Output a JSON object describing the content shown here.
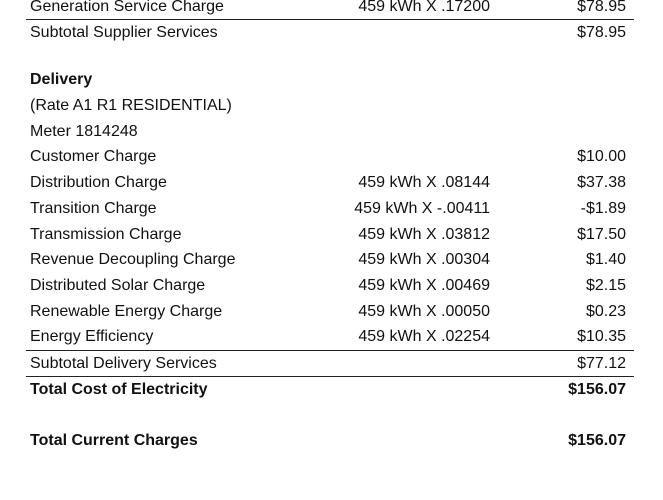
{
  "supplier": {
    "generation": {
      "desc": "Generation Service Charge",
      "calc": "459 kWh X .17200",
      "amount": "$78.95"
    },
    "subtotal": {
      "desc": "Subtotal Supplier Services",
      "amount": "$78.95"
    }
  },
  "delivery": {
    "heading": "Delivery",
    "rate": "(Rate A1 R1 RESIDENTIAL)",
    "meter": "Meter 1814248",
    "items": [
      {
        "desc": "Customer Charge",
        "calc": "",
        "amount": "$10.00"
      },
      {
        "desc": "Distribution Charge",
        "calc": "459 kWh X .08144",
        "amount": "$37.38"
      },
      {
        "desc": "Transition Charge",
        "calc": "459 kWh X -.00411",
        "amount": "-$1.89"
      },
      {
        "desc": "Transmission Charge",
        "calc": "459 kWh X .03812",
        "amount": "$17.50"
      },
      {
        "desc": "Revenue Decoupling Charge",
        "calc": "459 kWh X .00304",
        "amount": "$1.40"
      },
      {
        "desc": "Distributed Solar Charge",
        "calc": "459 kWh X .00469",
        "amount": "$2.15"
      },
      {
        "desc": "Renewable Energy Charge",
        "calc": "459 kWh X .00050",
        "amount": "$0.23"
      },
      {
        "desc": "Energy Efficiency",
        "calc": "459 kWh X .02254",
        "amount": "$10.35"
      }
    ],
    "subtotal": {
      "desc": "Subtotal Delivery Services",
      "amount": "$77.12"
    }
  },
  "totals": {
    "electricity": {
      "desc": "Total Cost of Electricity",
      "amount": "$156.07"
    },
    "current": {
      "desc": "Total Current Charges",
      "amount": "$156.07"
    }
  }
}
